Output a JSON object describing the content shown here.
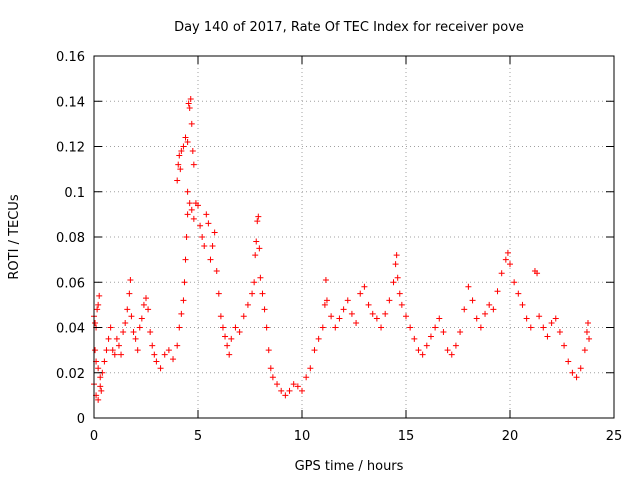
{
  "chart_data": {
    "type": "scatter",
    "title": "Day 140 of 2017, Rate Of TEC Index for receiver pove",
    "xlabel": "GPS time / hours",
    "ylabel": "ROTI / TECUs",
    "xlim": [
      0,
      25
    ],
    "ylim": [
      0,
      0.16
    ],
    "grid": true,
    "marker": "+",
    "x_ticks": [
      0,
      5,
      10,
      15,
      20,
      25
    ],
    "x_tick_labels": [
      "0",
      "5",
      "10",
      "15",
      "20",
      "25"
    ],
    "y_ticks": [
      0,
      0.02,
      0.04,
      0.06,
      0.08,
      0.1,
      0.12,
      0.14,
      0.16
    ],
    "y_tick_labels": [
      "0",
      "0.02",
      "0.04",
      "0.06",
      "0.08",
      "0.1",
      "0.12",
      "0.14",
      "0.16"
    ],
    "series": [
      {
        "color": "#ff0000",
        "points": [
          [
            0.0,
            0.045
          ],
          [
            0.05,
            0.042
          ],
          [
            0.1,
            0.04
          ],
          [
            0.15,
            0.048
          ],
          [
            0.2,
            0.05
          ],
          [
            0.25,
            0.054
          ],
          [
            0.05,
            0.03
          ],
          [
            0.1,
            0.025
          ],
          [
            0.2,
            0.022
          ],
          [
            0.3,
            0.018
          ],
          [
            0.35,
            0.012
          ],
          [
            0.0,
            0.015
          ],
          [
            0.1,
            0.01
          ],
          [
            0.2,
            0.008
          ],
          [
            0.3,
            0.014
          ],
          [
            0.4,
            0.02
          ],
          [
            0.5,
            0.025
          ],
          [
            0.6,
            0.03
          ],
          [
            0.7,
            0.035
          ],
          [
            0.8,
            0.04
          ],
          [
            0.9,
            0.03
          ],
          [
            1.0,
            0.028
          ],
          [
            1.1,
            0.035
          ],
          [
            1.2,
            0.032
          ],
          [
            1.3,
            0.028
          ],
          [
            1.4,
            0.038
          ],
          [
            1.5,
            0.042
          ],
          [
            1.6,
            0.048
          ],
          [
            1.7,
            0.055
          ],
          [
            1.75,
            0.061
          ],
          [
            1.8,
            0.045
          ],
          [
            1.9,
            0.038
          ],
          [
            2.0,
            0.035
          ],
          [
            2.1,
            0.03
          ],
          [
            2.2,
            0.04
          ],
          [
            2.3,
            0.044
          ],
          [
            2.4,
            0.05
          ],
          [
            2.5,
            0.053
          ],
          [
            2.6,
            0.048
          ],
          [
            2.7,
            0.038
          ],
          [
            2.8,
            0.032
          ],
          [
            2.9,
            0.028
          ],
          [
            3.0,
            0.025
          ],
          [
            3.2,
            0.022
          ],
          [
            3.4,
            0.028
          ],
          [
            3.6,
            0.03
          ],
          [
            3.8,
            0.026
          ],
          [
            4.0,
            0.032
          ],
          [
            4.1,
            0.04
          ],
          [
            4.2,
            0.046
          ],
          [
            4.3,
            0.052
          ],
          [
            4.35,
            0.06
          ],
          [
            4.4,
            0.07
          ],
          [
            4.45,
            0.08
          ],
          [
            4.5,
            0.09
          ],
          [
            4.0,
            0.105
          ],
          [
            4.05,
            0.112
          ],
          [
            4.1,
            0.116
          ],
          [
            4.15,
            0.11
          ],
          [
            4.2,
            0.118
          ],
          [
            4.3,
            0.12
          ],
          [
            4.4,
            0.124
          ],
          [
            4.5,
            0.122
          ],
          [
            4.55,
            0.139
          ],
          [
            4.6,
            0.137
          ],
          [
            4.65,
            0.141
          ],
          [
            4.7,
            0.13
          ],
          [
            4.75,
            0.118
          ],
          [
            4.8,
            0.112
          ],
          [
            4.5,
            0.1
          ],
          [
            4.6,
            0.095
          ],
          [
            4.7,
            0.092
          ],
          [
            4.8,
            0.088
          ],
          [
            4.9,
            0.095
          ],
          [
            5.0,
            0.094
          ],
          [
            5.1,
            0.085
          ],
          [
            5.2,
            0.08
          ],
          [
            5.3,
            0.076
          ],
          [
            5.4,
            0.09
          ],
          [
            5.5,
            0.086
          ],
          [
            5.6,
            0.07
          ],
          [
            5.7,
            0.076
          ],
          [
            5.8,
            0.082
          ],
          [
            5.9,
            0.065
          ],
          [
            6.0,
            0.055
          ],
          [
            6.1,
            0.045
          ],
          [
            6.2,
            0.04
          ],
          [
            6.3,
            0.036
          ],
          [
            6.4,
            0.032
          ],
          [
            6.5,
            0.028
          ],
          [
            6.6,
            0.035
          ],
          [
            6.8,
            0.04
          ],
          [
            7.0,
            0.038
          ],
          [
            7.2,
            0.045
          ],
          [
            7.4,
            0.05
          ],
          [
            7.6,
            0.055
          ],
          [
            7.7,
            0.06
          ],
          [
            7.75,
            0.072
          ],
          [
            7.8,
            0.078
          ],
          [
            7.85,
            0.087
          ],
          [
            7.9,
            0.089
          ],
          [
            7.95,
            0.075
          ],
          [
            8.0,
            0.062
          ],
          [
            8.1,
            0.055
          ],
          [
            8.2,
            0.048
          ],
          [
            8.3,
            0.04
          ],
          [
            8.4,
            0.03
          ],
          [
            8.5,
            0.022
          ],
          [
            8.6,
            0.018
          ],
          [
            8.8,
            0.015
          ],
          [
            9.0,
            0.012
          ],
          [
            9.2,
            0.01
          ],
          [
            9.4,
            0.012
          ],
          [
            9.6,
            0.015
          ],
          [
            9.8,
            0.014
          ],
          [
            10.0,
            0.012
          ],
          [
            10.2,
            0.018
          ],
          [
            10.4,
            0.022
          ],
          [
            10.6,
            0.03
          ],
          [
            10.8,
            0.035
          ],
          [
            11.0,
            0.04
          ],
          [
            11.1,
            0.05
          ],
          [
            11.15,
            0.061
          ],
          [
            11.2,
            0.052
          ],
          [
            11.4,
            0.045
          ],
          [
            11.6,
            0.04
          ],
          [
            11.8,
            0.044
          ],
          [
            12.0,
            0.048
          ],
          [
            12.2,
            0.052
          ],
          [
            12.4,
            0.046
          ],
          [
            12.6,
            0.042
          ],
          [
            12.8,
            0.055
          ],
          [
            13.0,
            0.058
          ],
          [
            13.2,
            0.05
          ],
          [
            13.4,
            0.046
          ],
          [
            13.6,
            0.044
          ],
          [
            13.8,
            0.04
          ],
          [
            14.0,
            0.046
          ],
          [
            14.2,
            0.052
          ],
          [
            14.4,
            0.06
          ],
          [
            14.5,
            0.068
          ],
          [
            14.55,
            0.072
          ],
          [
            14.6,
            0.062
          ],
          [
            14.7,
            0.055
          ],
          [
            14.8,
            0.05
          ],
          [
            15.0,
            0.045
          ],
          [
            15.2,
            0.04
          ],
          [
            15.4,
            0.035
          ],
          [
            15.6,
            0.03
          ],
          [
            15.8,
            0.028
          ],
          [
            16.0,
            0.032
          ],
          [
            16.2,
            0.036
          ],
          [
            16.4,
            0.04
          ],
          [
            16.6,
            0.044
          ],
          [
            16.8,
            0.038
          ],
          [
            17.0,
            0.03
          ],
          [
            17.2,
            0.028
          ],
          [
            17.4,
            0.032
          ],
          [
            17.6,
            0.038
          ],
          [
            17.8,
            0.048
          ],
          [
            18.0,
            0.058
          ],
          [
            18.2,
            0.052
          ],
          [
            18.4,
            0.044
          ],
          [
            18.6,
            0.04
          ],
          [
            18.8,
            0.046
          ],
          [
            19.0,
            0.05
          ],
          [
            19.2,
            0.048
          ],
          [
            19.4,
            0.056
          ],
          [
            19.6,
            0.064
          ],
          [
            19.8,
            0.07
          ],
          [
            19.9,
            0.073
          ],
          [
            20.0,
            0.068
          ],
          [
            20.2,
            0.06
          ],
          [
            20.4,
            0.055
          ],
          [
            20.6,
            0.05
          ],
          [
            20.8,
            0.044
          ],
          [
            21.0,
            0.04
          ],
          [
            21.2,
            0.065
          ],
          [
            21.3,
            0.064
          ],
          [
            21.4,
            0.045
          ],
          [
            21.6,
            0.04
          ],
          [
            21.8,
            0.036
          ],
          [
            22.0,
            0.042
          ],
          [
            22.2,
            0.044
          ],
          [
            22.4,
            0.038
          ],
          [
            22.6,
            0.032
          ],
          [
            22.8,
            0.025
          ],
          [
            23.0,
            0.02
          ],
          [
            23.2,
            0.018
          ],
          [
            23.4,
            0.022
          ],
          [
            23.6,
            0.03
          ],
          [
            23.7,
            0.038
          ],
          [
            23.75,
            0.042
          ],
          [
            23.8,
            0.035
          ]
        ]
      }
    ]
  }
}
